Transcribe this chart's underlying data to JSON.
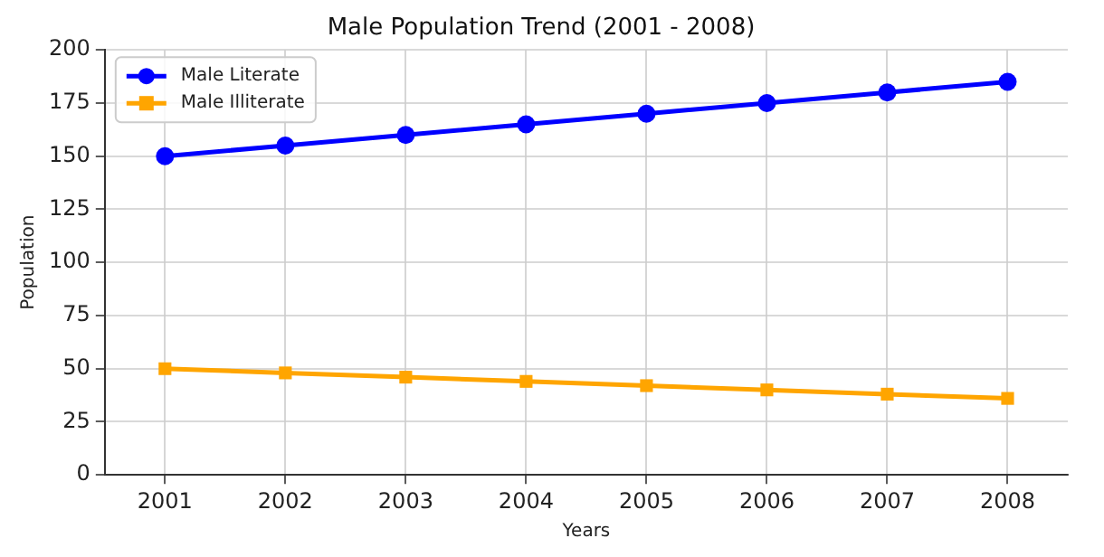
{
  "chart_data": {
    "type": "line",
    "title": "Male Population Trend (2001 - 2008)",
    "xlabel": "Years",
    "ylabel": "Population",
    "categories": [
      "2001",
      "2002",
      "2003",
      "2004",
      "2005",
      "2006",
      "2007",
      "2008"
    ],
    "series": [
      {
        "name": "Male Literate",
        "color": "#0000ff",
        "marker": "circle",
        "values": [
          150,
          155,
          160,
          165,
          170,
          175,
          180,
          185
        ]
      },
      {
        "name": "Male Illiterate",
        "color": "#ffa500",
        "marker": "square",
        "values": [
          50,
          48,
          46,
          44,
          42,
          40,
          38,
          36
        ]
      }
    ],
    "ylim": [
      0,
      200
    ],
    "yticks": [
      0,
      25,
      50,
      75,
      100,
      125,
      150,
      175,
      200
    ],
    "grid": true,
    "legend": "top left",
    "line_style": "solid"
  }
}
